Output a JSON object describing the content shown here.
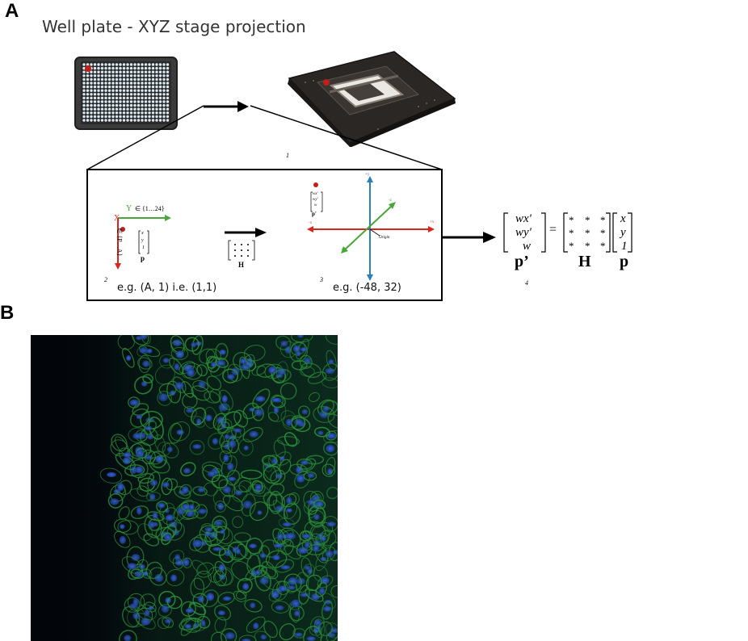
{
  "panel_a": {
    "label": "A",
    "title": "Well plate - XYZ stage projection",
    "step1": "1",
    "step2": "2",
    "step3": "3",
    "step4": "4",
    "plate_axes": {
      "y_letter": "Y",
      "y_range": "∈ {1…24}",
      "x_letter": "X",
      "x_range": "∈ {P…A}"
    },
    "vec_p": {
      "x": "x",
      "y": "y",
      "one": "1",
      "label": "p"
    },
    "matrix_h": {
      "star": "•",
      "label": "H"
    },
    "vec_pprime": {
      "wx": "wx'",
      "wy": "wy'",
      "w": "w",
      "label": "p'"
    },
    "stage_axes": {
      "py": "+y",
      "ny": "-y",
      "px": "+x",
      "nx": "-x",
      "pz": "+z",
      "nz": "-z",
      "origin": "Origin"
    },
    "example_plate": "e.g. (A, 1) i.e. (1,1)",
    "example_stage": "e.g. (-48, 32)",
    "equation": {
      "lhs": [
        "wx'",
        "wy'",
        "w"
      ],
      "lhs_label": "p’",
      "equals": "=",
      "star": "*",
      "h_label": "H",
      "rhs": [
        "x",
        "y",
        "1"
      ],
      "rhs_label": "p"
    }
  },
  "panel_b": {
    "label": "B"
  },
  "colors": {
    "red_axis": "#d9261c",
    "green_axis": "#4aa53a",
    "blue_axis": "#2a7fb8",
    "marker": "#c0201c",
    "plate_body": "#3b3b3b",
    "well": "#dbe9f2",
    "stage_body": "#2b2724",
    "micrograph_bg": "#040a12",
    "cell_green": "#2a8a3a",
    "nucleus_blue": "#2447a8"
  }
}
